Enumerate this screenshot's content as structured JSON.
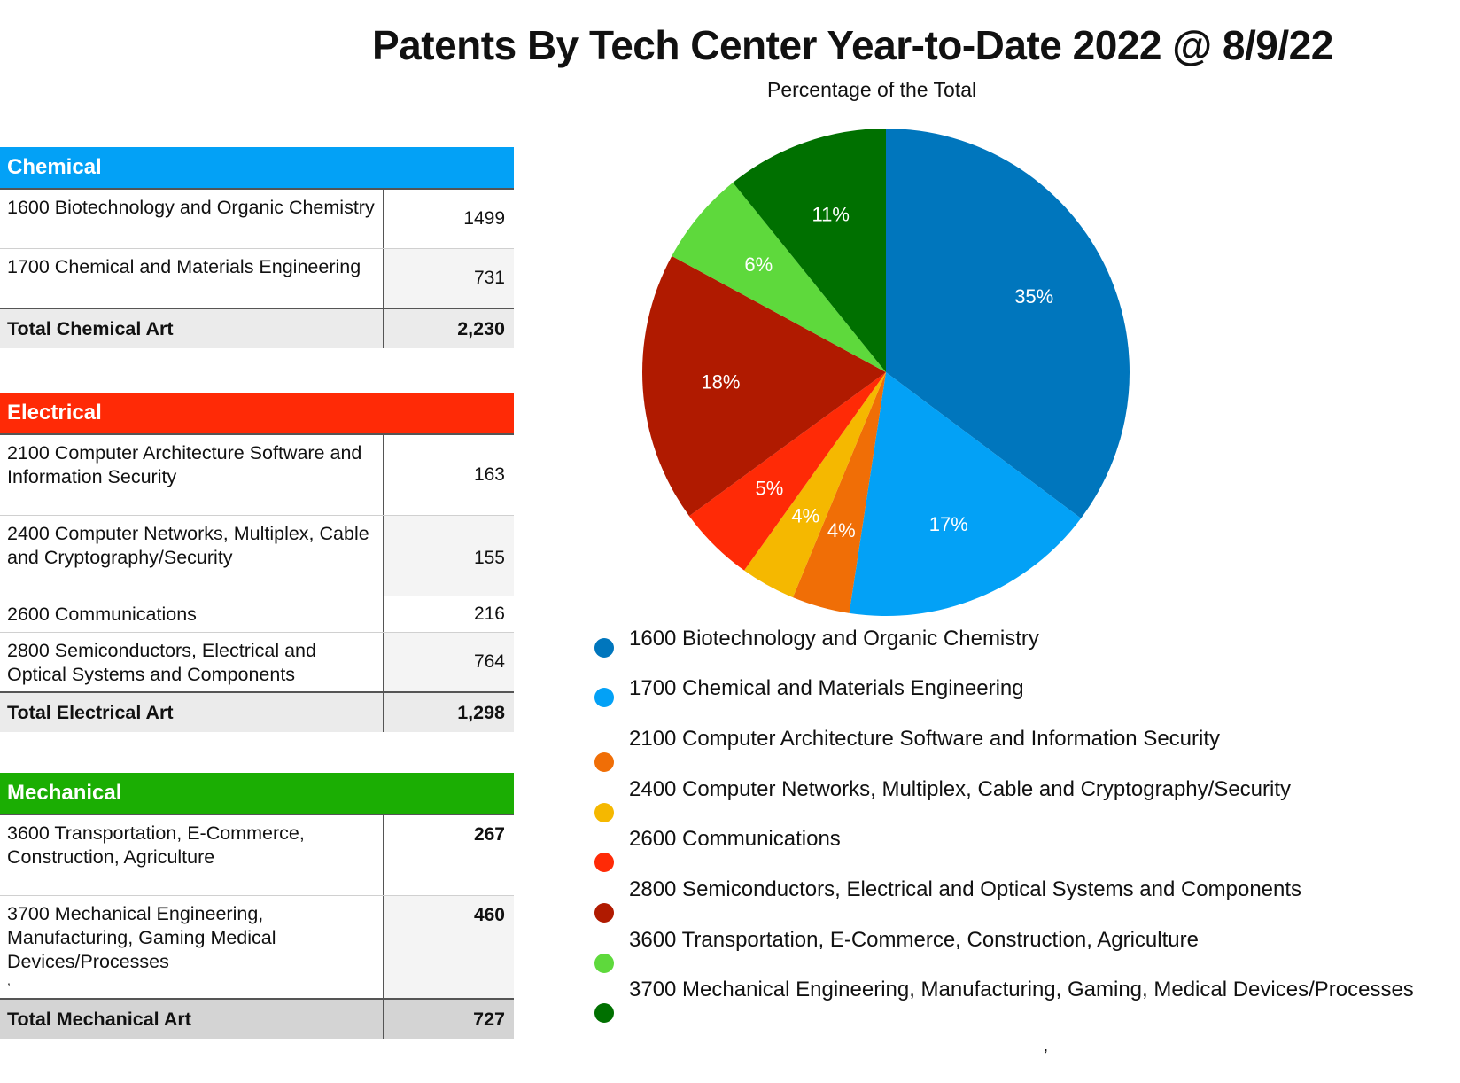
{
  "title": "Patents By Tech Center Year-to-Date 2022 @ 8/9/22",
  "subtitle": "Percentage of the Total",
  "tables": {
    "chemical": {
      "header": "Chemical",
      "color": "#03A1F6",
      "rows": [
        {
          "label": "1600 Biotechnology and Organic Chemistry",
          "value": "1499"
        },
        {
          "label": "1700 Chemical and Materials Engineering",
          "value": "731"
        }
      ],
      "total_label": "Total Chemical Art",
      "total_value": "2,230"
    },
    "electrical": {
      "header": "Electrical",
      "color": "#FF2A06",
      "rows": [
        {
          "label": "2100 Computer Architecture Software and Information Security",
          "value": "163"
        },
        {
          "label": "2400 Computer Networks, Multiplex, Cable and Cryptography/Security",
          "value": "155"
        },
        {
          "label": "2600 Communications",
          "value": "216"
        },
        {
          "label": "2800 Semiconductors, Electrical and Optical Systems and Components",
          "value": "764"
        }
      ],
      "total_label": "Total Electrical Art",
      "total_value": "1,298"
    },
    "mechanical": {
      "header": "Mechanical",
      "color": "#1BAE03",
      "rows": [
        {
          "label": "3600 Transportation, E-Commerce, Construction, Agriculture",
          "value": "267"
        },
        {
          "label": "3700 Mechanical Engineering, Manufacturing, Gaming Medical Devices/Processes",
          "value": "460"
        }
      ],
      "stray_mark": ",",
      "total_label": "Total Mechanical Art",
      "total_value": "727"
    }
  },
  "legend_stray_mark": ",",
  "chart_data": {
    "type": "pie",
    "title": "Patents By Tech Center Year-to-Date 2022 @ 8/9/22",
    "subtitle": "Percentage of the Total",
    "legend_position": "bottom",
    "slices": [
      {
        "label": "1600 Biotechnology and Organic Chemistry",
        "value": 1499,
        "percent_label": "35%",
        "color": "#0076BD"
      },
      {
        "label": "1700 Chemical and Materials Engineering",
        "value": 731,
        "percent_label": "17%",
        "color": "#03A1F6"
      },
      {
        "label": "2100 Computer Architecture Software and Information Security",
        "value": 163,
        "percent_label": "4%",
        "color": "#F06E06"
      },
      {
        "label": "2400 Computer Networks, Multiplex, Cable and Cryptography/Security",
        "value": 155,
        "percent_label": "4%",
        "color": "#F5B800"
      },
      {
        "label": "2600 Communications",
        "value": 216,
        "percent_label": "5%",
        "color": "#FF2A06"
      },
      {
        "label": "2800 Semiconductors, Electrical and Optical Systems and Components",
        "value": 764,
        "percent_label": "18%",
        "color": "#B01A00"
      },
      {
        "label": "3600 Transportation, E-Commerce, Construction, Agriculture",
        "value": 267,
        "percent_label": "6%",
        "color": "#5ED93C"
      },
      {
        "label": "3700 Mechanical Engineering, Manufacturing, Gaming, Medical Devices/Processes",
        "value": 460,
        "percent_label": "11%",
        "color": "#007000"
      }
    ]
  }
}
